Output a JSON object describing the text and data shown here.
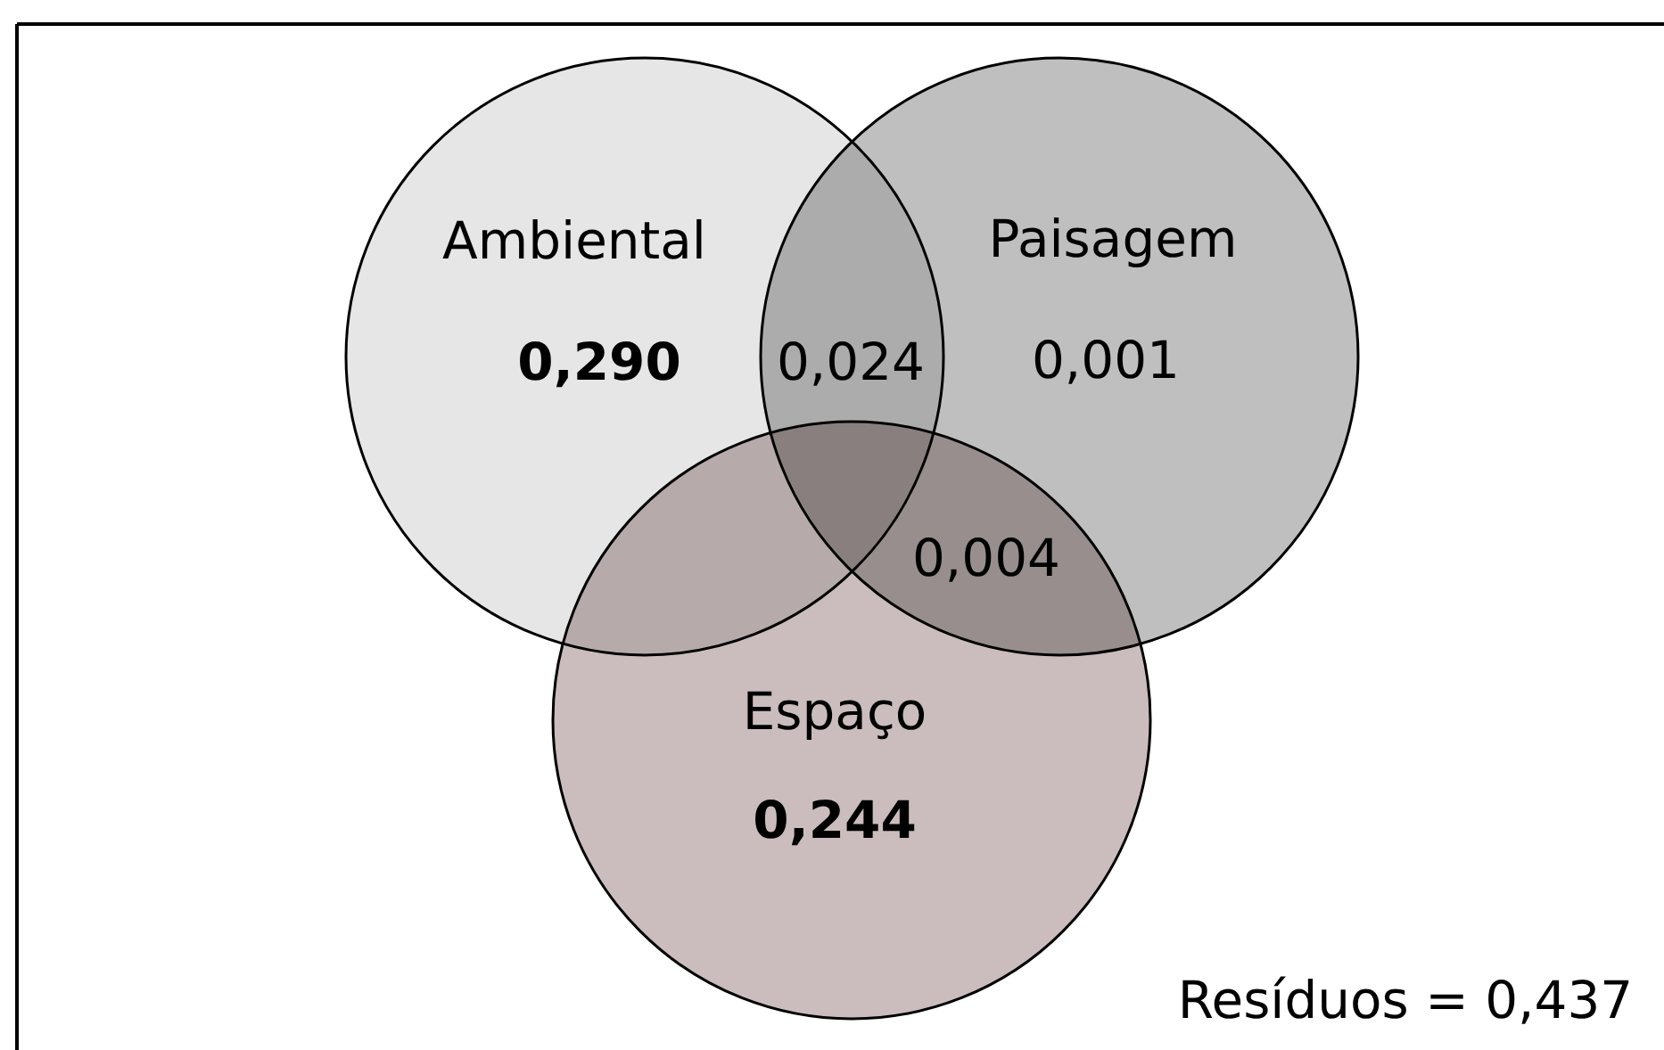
{
  "chart_data": {
    "type": "other",
    "categories": [
      "Ambiental",
      "Paisagem",
      "Espaço"
    ],
    "colors": [
      "#e6e6e6",
      "#bfbfbf",
      "#cbbdbd"
    ],
    "values": [
      0.29,
      0.001,
      0.244
    ],
    "value_labels": [
      "0,290",
      "0,001",
      "0,244"
    ],
    "annotations": [
      "0,024",
      "0,004",
      "Resíduos = 0,437"
    ]
  }
}
